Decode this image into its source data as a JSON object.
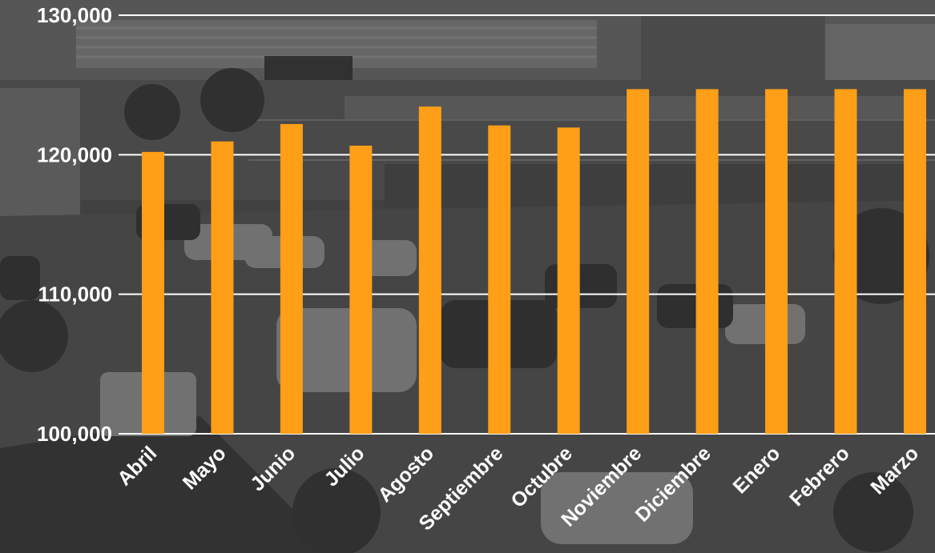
{
  "colors": {
    "bar": "#ff9e17",
    "grid": "#ffffff",
    "text": "#ffffff",
    "background": "#4a4a4a"
  },
  "background_image": "grayscale photo of a shopping plaza parking lot",
  "chart_data": {
    "type": "bar",
    "title": "",
    "xlabel": "",
    "ylabel": "",
    "categories": [
      "Abril",
      "Mayo",
      "Junio",
      "Julio",
      "Agosto",
      "Septiembre",
      "Octubre",
      "Noviembre",
      "Diciembre",
      "Enero",
      "Febrero",
      "Marzo"
    ],
    "values": [
      120200,
      120950,
      122200,
      120650,
      123450,
      122100,
      121950,
      124700,
      124700,
      124700,
      124700,
      124700
    ],
    "ylim": [
      100000,
      130000
    ],
    "yticks": [
      100000,
      110000,
      120000,
      130000
    ],
    "ytick_labels": [
      "100,000",
      "110,000",
      "120,000",
      "130,000"
    ],
    "grid": true,
    "legend": "none"
  }
}
